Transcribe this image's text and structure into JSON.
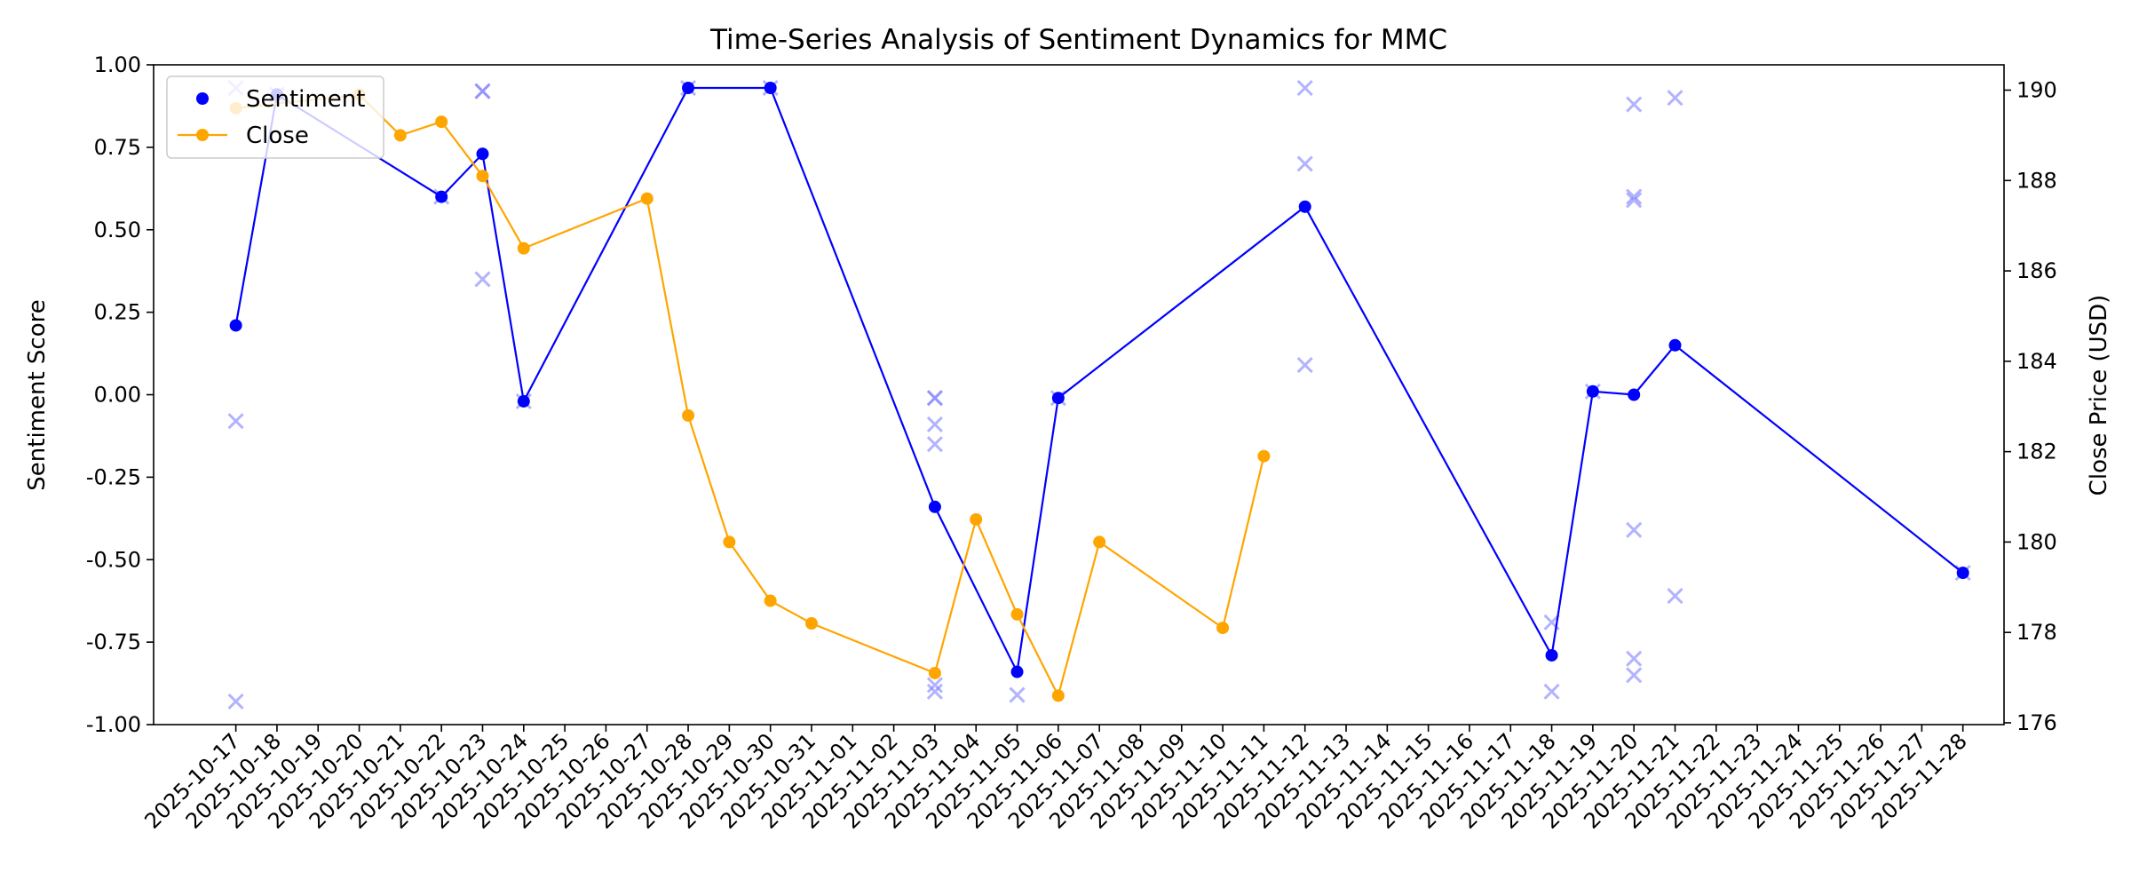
{
  "chart_data": {
    "type": "line",
    "title": "Time-Series Analysis of Sentiment Dynamics for MMC",
    "ylabel": "Sentiment Score",
    "ylabel_right": "Close Price (USD)",
    "xlim": [
      "2025-10-15",
      "2025-11-29"
    ],
    "ylim": [
      -1.0,
      1.0
    ],
    "ylim_right": [
      175.96,
      190.56
    ],
    "y_ticks": [
      "-1.00",
      "-0.75",
      "-0.50",
      "-0.25",
      "0.00",
      "0.25",
      "0.50",
      "0.75",
      "1.00"
    ],
    "y_ticks_right": [
      "176",
      "178",
      "180",
      "182",
      "184",
      "186",
      "188",
      "190"
    ],
    "x_ticks": [
      "2025-10-17",
      "2025-10-18",
      "2025-10-19",
      "2025-10-20",
      "2025-10-21",
      "2025-10-22",
      "2025-10-23",
      "2025-10-24",
      "2025-10-25",
      "2025-10-26",
      "2025-10-27",
      "2025-10-28",
      "2025-10-29",
      "2025-10-30",
      "2025-10-31",
      "2025-11-01",
      "2025-11-02",
      "2025-11-03",
      "2025-11-04",
      "2025-11-05",
      "2025-11-06",
      "2025-11-07",
      "2025-11-08",
      "2025-11-09",
      "2025-11-10",
      "2025-11-11",
      "2025-11-12",
      "2025-11-13",
      "2025-11-14",
      "2025-11-15",
      "2025-11-16",
      "2025-11-17",
      "2025-11-18",
      "2025-11-19",
      "2025-11-20",
      "2025-11-21",
      "2025-11-22",
      "2025-11-23",
      "2025-11-24",
      "2025-11-25",
      "2025-11-26",
      "2025-11-27",
      "2025-11-28"
    ],
    "legend_position": "top-left",
    "grid": false,
    "series": [
      {
        "name": "Sentiment",
        "axis": "left",
        "color": "#0000ff",
        "marker": "circle",
        "points": [
          {
            "x": "2025-10-17",
            "y": 0.21
          },
          {
            "x": "2025-10-18",
            "y": 0.91
          },
          {
            "x": "2025-10-22",
            "y": 0.6
          },
          {
            "x": "2025-10-23",
            "y": 0.73
          },
          {
            "x": "2025-10-24",
            "y": -0.02
          },
          {
            "x": "2025-10-28",
            "y": 0.93
          },
          {
            "x": "2025-10-30",
            "y": 0.93
          },
          {
            "x": "2025-11-03",
            "y": -0.34
          },
          {
            "x": "2025-11-05",
            "y": -0.84
          },
          {
            "x": "2025-11-06",
            "y": -0.01
          },
          {
            "x": "2025-11-12",
            "y": 0.57
          },
          {
            "x": "2025-11-18",
            "y": -0.79
          },
          {
            "x": "2025-11-19",
            "y": 0.01
          },
          {
            "x": "2025-11-20",
            "y": 0.0
          },
          {
            "x": "2025-11-21",
            "y": 0.15
          },
          {
            "x": "2025-11-28",
            "y": -0.54
          }
        ]
      },
      {
        "name": "Close",
        "axis": "right",
        "color": "#ffa500",
        "marker": "circle",
        "points": [
          {
            "x": "2025-10-17",
            "y": 189.6
          },
          {
            "x": "2025-10-20",
            "y": 189.9
          },
          {
            "x": "2025-10-21",
            "y": 189.0
          },
          {
            "x": "2025-10-22",
            "y": 189.3
          },
          {
            "x": "2025-10-23",
            "y": 188.1
          },
          {
            "x": "2025-10-24",
            "y": 186.5
          },
          {
            "x": "2025-10-27",
            "y": 187.6
          },
          {
            "x": "2025-10-28",
            "y": 182.8
          },
          {
            "x": "2025-10-29",
            "y": 180.0
          },
          {
            "x": "2025-10-30",
            "y": 178.7
          },
          {
            "x": "2025-10-31",
            "y": 178.2
          },
          {
            "x": "2025-11-03",
            "y": 177.1
          },
          {
            "x": "2025-11-04",
            "y": 180.5
          },
          {
            "x": "2025-11-05",
            "y": 178.4
          },
          {
            "x": "2025-11-06",
            "y": 176.6
          },
          {
            "x": "2025-11-07",
            "y": 180.0
          },
          {
            "x": "2025-11-10",
            "y": 178.1
          },
          {
            "x": "2025-11-11",
            "y": 181.9
          }
        ]
      },
      {
        "name": "",
        "axis": "left",
        "color": "#8080ff",
        "marker": "x",
        "points": [
          {
            "x": "2025-10-17",
            "y": 0.93
          },
          {
            "x": "2025-10-17",
            "y": -0.08
          },
          {
            "x": "2025-10-17",
            "y": -0.93
          },
          {
            "x": "2025-10-18",
            "y": 0.91
          },
          {
            "x": "2025-10-22",
            "y": 0.6
          },
          {
            "x": "2025-10-23",
            "y": 0.92
          },
          {
            "x": "2025-10-23",
            "y": 0.92
          },
          {
            "x": "2025-10-23",
            "y": 0.35
          },
          {
            "x": "2025-10-24",
            "y": -0.02
          },
          {
            "x": "2025-10-28",
            "y": 0.93
          },
          {
            "x": "2025-10-30",
            "y": 0.93
          },
          {
            "x": "2025-11-03",
            "y": -0.01
          },
          {
            "x": "2025-11-03",
            "y": -0.01
          },
          {
            "x": "2025-11-03",
            "y": -0.09
          },
          {
            "x": "2025-11-03",
            "y": -0.15
          },
          {
            "x": "2025-11-03",
            "y": -0.88
          },
          {
            "x": "2025-11-03",
            "y": -0.9
          },
          {
            "x": "2025-11-05",
            "y": -0.91
          },
          {
            "x": "2025-11-06",
            "y": -0.01
          },
          {
            "x": "2025-11-12",
            "y": 0.93
          },
          {
            "x": "2025-11-12",
            "y": 0.7
          },
          {
            "x": "2025-11-12",
            "y": 0.09
          },
          {
            "x": "2025-11-18",
            "y": -0.69
          },
          {
            "x": "2025-11-18",
            "y": -0.9
          },
          {
            "x": "2025-11-19",
            "y": 0.01
          },
          {
            "x": "2025-11-20",
            "y": 0.88
          },
          {
            "x": "2025-11-20",
            "y": 0.6
          },
          {
            "x": "2025-11-20",
            "y": 0.59
          },
          {
            "x": "2025-11-20",
            "y": -0.41
          },
          {
            "x": "2025-11-20",
            "y": -0.8
          },
          {
            "x": "2025-11-20",
            "y": -0.85
          },
          {
            "x": "2025-11-21",
            "y": 0.9
          },
          {
            "x": "2025-11-21",
            "y": -0.61
          },
          {
            "x": "2025-11-28",
            "y": -0.54
          }
        ]
      }
    ]
  }
}
